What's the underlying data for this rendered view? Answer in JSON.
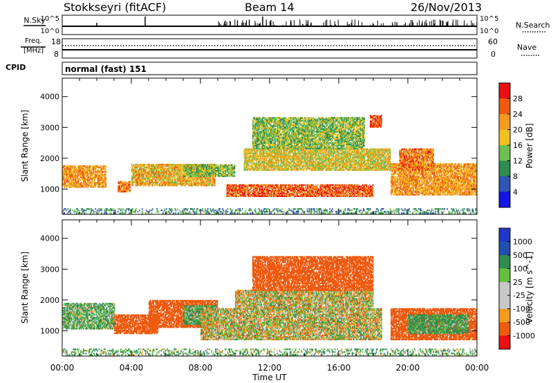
{
  "header": {
    "title": "Stokkseyri (fitACF)",
    "beam": "Beam 14",
    "date": "26/Nov/2013"
  },
  "top_panels": {
    "nsky_label": "N.Sky",
    "nsky_ticks": [
      "10^5",
      "10^0"
    ],
    "nsearch_label": "N.Search",
    "nsearch_ticks": [
      "10^5",
      "10^0"
    ],
    "freq_label_1": "Freq.",
    "freq_label_2": "[MHz]",
    "freq_ticks": [
      "18",
      "8"
    ],
    "nave_label": "Nave",
    "nave_ticks": [
      "60",
      "0"
    ],
    "cpid_label": "CPID",
    "cpid_value": "normal (fast) 151"
  },
  "colors": {
    "power": [
      "#1414e6",
      "#2e55b4",
      "#2e8c50",
      "#6cbf50",
      "#f0c020",
      "#f59a20",
      "#ee5a10",
      "#e81010"
    ],
    "velocity": [
      "#e81010",
      "#ee5a10",
      "#f59a20",
      "#c8c8c8",
      "#c8c8c8",
      "#66c040",
      "#2e8c50",
      "#2050b0",
      "#2038c8"
    ]
  },
  "chart_data": [
    {
      "type": "heatmap",
      "name": "power",
      "xlabel": "",
      "ylabel": "Slant Range [km]",
      "xticks": [
        "00:00",
        "04:00",
        "08:00",
        "12:00",
        "16:00",
        "20:00",
        "00:00"
      ],
      "xlim": [
        0,
        24
      ],
      "yticks": [
        "1000",
        "2000",
        "3000",
        "4000"
      ],
      "ylim": [
        180,
        4600
      ],
      "colorbar_label": "Power [dB]",
      "colorbar_ticks": [
        "28",
        "24",
        "20",
        "16",
        "12",
        "8",
        "4"
      ],
      "colorbar_range": [
        0,
        32
      ],
      "bands": [
        {
          "t": [
            0.0,
            2.5
          ],
          "r": [
            1050,
            1750
          ],
          "v": 22
        },
        {
          "t": [
            3.2,
            3.9
          ],
          "r": [
            900,
            1250
          ],
          "v": 24
        },
        {
          "t": [
            4.0,
            8.8
          ],
          "r": [
            1100,
            1800
          ],
          "v": 20
        },
        {
          "t": [
            7.0,
            10.0
          ],
          "r": [
            1400,
            1800
          ],
          "v": 14
        },
        {
          "t": [
            9.5,
            18.0
          ],
          "r": [
            750,
            1150
          ],
          "v": 26
        },
        {
          "t": [
            10.5,
            19.0
          ],
          "r": [
            1600,
            2300
          ],
          "v": 18
        },
        {
          "t": [
            11.0,
            17.5
          ],
          "r": [
            2300,
            3300
          ],
          "v": 14
        },
        {
          "t": [
            17.8,
            18.5
          ],
          "r": [
            3000,
            3400
          ],
          "v": 27
        },
        {
          "t": [
            19.0,
            24.0
          ],
          "r": [
            800,
            1800
          ],
          "v": 22
        },
        {
          "t": [
            19.5,
            21.5
          ],
          "r": [
            1600,
            2300
          ],
          "v": 24
        },
        {
          "t": [
            0.0,
            24.0
          ],
          "r": [
            200,
            350
          ],
          "v": 10
        }
      ]
    },
    {
      "type": "heatmap",
      "name": "velocity",
      "xlabel": "Time UT",
      "ylabel": "Slant Range [km]",
      "xticks": [
        "00:00",
        "04:00",
        "08:00",
        "12:00",
        "16:00",
        "20:00",
        "00:00"
      ],
      "xlim": [
        0,
        24
      ],
      "yticks": [
        "1000",
        "2000",
        "3000",
        "4000"
      ],
      "ylim": [
        180,
        4600
      ],
      "colorbar_label": "Velocity [m s^-1]",
      "colorbar_ticks": [
        "1000",
        "500",
        "100",
        "25",
        "-25",
        "-100",
        "-500",
        "-1000"
      ],
      "bands": [
        {
          "t": [
            0.0,
            3.0
          ],
          "r": [
            1050,
            1900
          ],
          "v": 100
        },
        {
          "t": [
            3.0,
            5.5
          ],
          "r": [
            900,
            1500
          ],
          "v": -300
        },
        {
          "t": [
            5.0,
            9.0
          ],
          "r": [
            1100,
            2000
          ],
          "v": -300
        },
        {
          "t": [
            7.0,
            9.0
          ],
          "r": [
            1200,
            1800
          ],
          "v": 120
        },
        {
          "t": [
            8.0,
            18.5
          ],
          "r": [
            700,
            1700
          ],
          "v": 0
        },
        {
          "t": [
            10.0,
            18.0
          ],
          "r": [
            1700,
            2300
          ],
          "v": 0
        },
        {
          "t": [
            11.0,
            18.0
          ],
          "r": [
            2300,
            3400
          ],
          "v": -300
        },
        {
          "t": [
            19.0,
            24.0
          ],
          "r": [
            700,
            1700
          ],
          "v": -300
        },
        {
          "t": [
            20.0,
            23.5
          ],
          "r": [
            900,
            1500
          ],
          "v": 150
        },
        {
          "t": [
            0.0,
            24.0
          ],
          "r": [
            200,
            400
          ],
          "v": 100
        }
      ]
    }
  ]
}
